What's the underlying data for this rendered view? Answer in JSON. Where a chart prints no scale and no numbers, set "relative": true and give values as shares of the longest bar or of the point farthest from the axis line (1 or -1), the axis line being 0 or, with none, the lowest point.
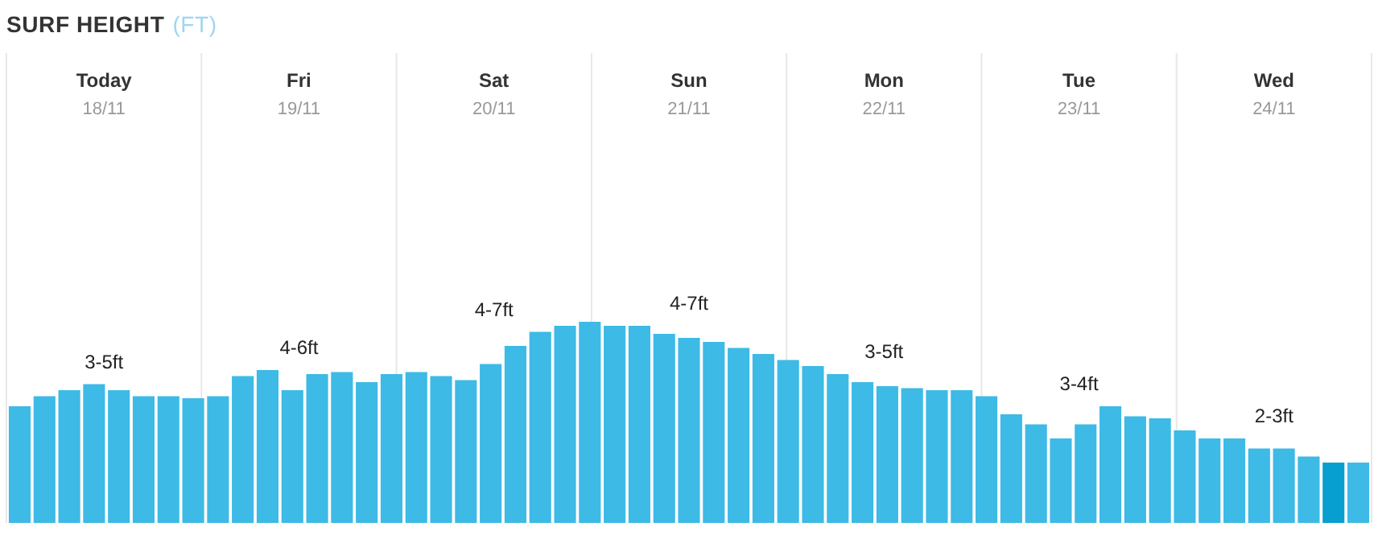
{
  "chart_data": {
    "type": "bar",
    "title": "SURF HEIGHT",
    "subtitle": "(FT)",
    "relative": true,
    "grid": "x",
    "categories": [
      null,
      null,
      null,
      null,
      null,
      null,
      null,
      null,
      null,
      null,
      null,
      null,
      null,
      null,
      null,
      null,
      null,
      null,
      null,
      null,
      null,
      null,
      null,
      null,
      null,
      null,
      null,
      null,
      null,
      null,
      null,
      null,
      null,
      null,
      null,
      null,
      null,
      null,
      null,
      null,
      null,
      null,
      null,
      null,
      null,
      null,
      null,
      null,
      null,
      null,
      null,
      null,
      null,
      null,
      null
    ],
    "values": [
      0.58,
      0.63,
      0.66,
      0.69,
      0.66,
      0.63,
      0.63,
      0.62,
      0.63,
      0.73,
      0.76,
      0.66,
      0.74,
      0.75,
      0.7,
      0.74,
      0.75,
      0.73,
      0.71,
      0.79,
      0.88,
      0.95,
      0.98,
      1,
      0.98,
      0.98,
      0.94,
      0.92,
      0.9,
      0.87,
      0.84,
      0.81,
      0.78,
      0.74,
      0.7,
      0.68,
      0.67,
      0.66,
      0.66,
      0.63,
      0.54,
      0.49,
      0.42,
      0.49,
      0.58,
      0.53,
      0.52,
      0.46,
      0.42,
      0.42,
      0.37,
      0.37,
      0.33,
      0.3,
      0.3
    ],
    "colors": [
      "#3dbae6",
      "#3dbae6",
      "#3dbae6",
      "#3dbae6",
      "#3dbae6",
      "#3dbae6",
      "#3dbae6",
      "#3dbae6",
      "#3dbae6",
      "#3dbae6",
      "#3dbae6",
      "#3dbae6",
      "#3dbae6",
      "#3dbae6",
      "#3dbae6",
      "#3dbae6",
      "#3dbae6",
      "#3dbae6",
      "#3dbae6",
      "#3dbae6",
      "#3dbae6",
      "#3dbae6",
      "#3dbae6",
      "#3dbae6",
      "#3dbae6",
      "#3dbae6",
      "#3dbae6",
      "#3dbae6",
      "#3dbae6",
      "#3dbae6",
      "#3dbae6",
      "#3dbae6",
      "#3dbae6",
      "#3dbae6",
      "#3dbae6",
      "#3dbae6",
      "#3dbae6",
      "#3dbae6",
      "#3dbae6",
      "#3dbae6",
      "#3dbae6",
      "#3dbae6",
      "#3dbae6",
      "#3dbae6",
      "#3dbae6",
      "#3dbae6",
      "#3dbae6",
      "#3dbae6",
      "#3dbae6",
      "#3dbae6",
      "#3dbae6",
      "#3dbae6",
      "#3dbae6",
      "#069fcf",
      "#3dbae6"
    ],
    "annotations": [
      "Today",
      "18/11",
      "3-5ft",
      "Fri",
      "19/11",
      "4-6ft",
      "Sat",
      "20/11",
      "4-7ft",
      "Sun",
      "21/11",
      "4-7ft",
      "Mon",
      "22/11",
      "3-5ft",
      "Tue",
      "23/11",
      "3-4ft",
      "Wed",
      "24/11",
      "2-3ft"
    ]
  }
}
